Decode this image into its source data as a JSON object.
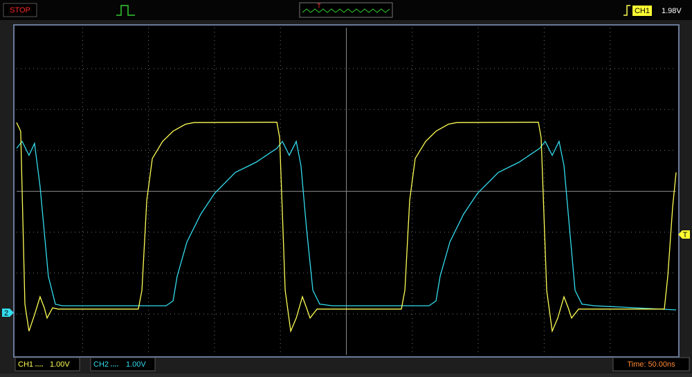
{
  "toolbar": {
    "status": "STOP",
    "trigger_channel": "CH1",
    "trigger_level": "1.98V"
  },
  "markers": {
    "ch2": "2",
    "trigger": "T",
    "preview_trigger": "T"
  },
  "status_bar": {
    "ch1_scale": "1.00V",
    "ch2_scale": "1.00V",
    "time": "Time: 50.00ns"
  },
  "chart_data": {
    "type": "line",
    "xlim": [
      0,
      500
    ],
    "ylim": [
      -4,
      4
    ],
    "series": [
      {
        "name": "CH1",
        "color": "#ffff55",
        "x": [
          0,
          3.1,
          6.3,
          9.4,
          13.6,
          17.8,
          21.0,
          23.1,
          27.3,
          31.5,
          92.3,
          95.0,
          98.7,
          102.9,
          110.7,
          118.6,
          128.1,
          134.4,
          197.3,
          199.4,
          203.6,
          207.8,
          212.0,
          216.7,
          219.8,
          222.5,
          227.7,
          291.7,
          294.4,
          298.0,
          302.2,
          310.1,
          318.0,
          327.4,
          333.7,
          395.6,
          397.7,
          401.9,
          406.1,
          410.3,
          415.0,
          418.2,
          420.8,
          426.1,
          491.1,
          493.7,
          497.4,
          500
        ],
        "values": [
          1.68,
          1.47,
          -2.76,
          -3.42,
          -3.02,
          -2.58,
          -2.85,
          -3.1,
          -2.85,
          -2.88,
          -2.88,
          -2.42,
          -0.22,
          0.8,
          1.22,
          1.47,
          1.64,
          1.68,
          1.69,
          1.31,
          -2.42,
          -3.42,
          -3.1,
          -2.58,
          -2.85,
          -3.1,
          -2.88,
          -2.88,
          -2.42,
          -0.22,
          0.8,
          1.22,
          1.47,
          1.64,
          1.68,
          1.69,
          1.31,
          -2.42,
          -3.42,
          -3.1,
          -2.58,
          -2.85,
          -3.1,
          -2.88,
          -2.88,
          -2.08,
          -0.39,
          0.46
        ]
      },
      {
        "name": "CH2",
        "color": "#33ddee",
        "x": [
          0,
          4.2,
          9.4,
          13.6,
          17.8,
          24.1,
          29.4,
          34.6,
          113.3,
          118.6,
          121.7,
          129.1,
          139.6,
          150.1,
          165.8,
          181.6,
          197.3,
          201.5,
          206.7,
          212.0,
          215.6,
          219.8,
          224.6,
          229.8,
          239.3,
          312.7,
          318.0,
          321.1,
          328.5,
          338.9,
          349.4,
          365.2,
          380.9,
          396.6,
          400.8,
          406.1,
          411.3,
          415.0,
          419.2,
          423.4,
          428.6,
          438.0,
          500
        ],
        "values": [
          1.05,
          1.22,
          0.88,
          1.17,
          0.12,
          -2.08,
          -2.76,
          -2.8,
          -2.8,
          -2.68,
          -2.08,
          -1.24,
          -0.56,
          -0.05,
          0.46,
          0.71,
          1.05,
          1.22,
          0.88,
          1.22,
          0.63,
          -0.9,
          -2.42,
          -2.76,
          -2.8,
          -2.8,
          -2.68,
          -2.08,
          -1.24,
          -0.56,
          -0.05,
          0.46,
          0.71,
          1.05,
          1.22,
          0.88,
          1.22,
          0.63,
          -0.9,
          -2.42,
          -2.76,
          -2.8,
          -2.9
        ]
      }
    ]
  }
}
